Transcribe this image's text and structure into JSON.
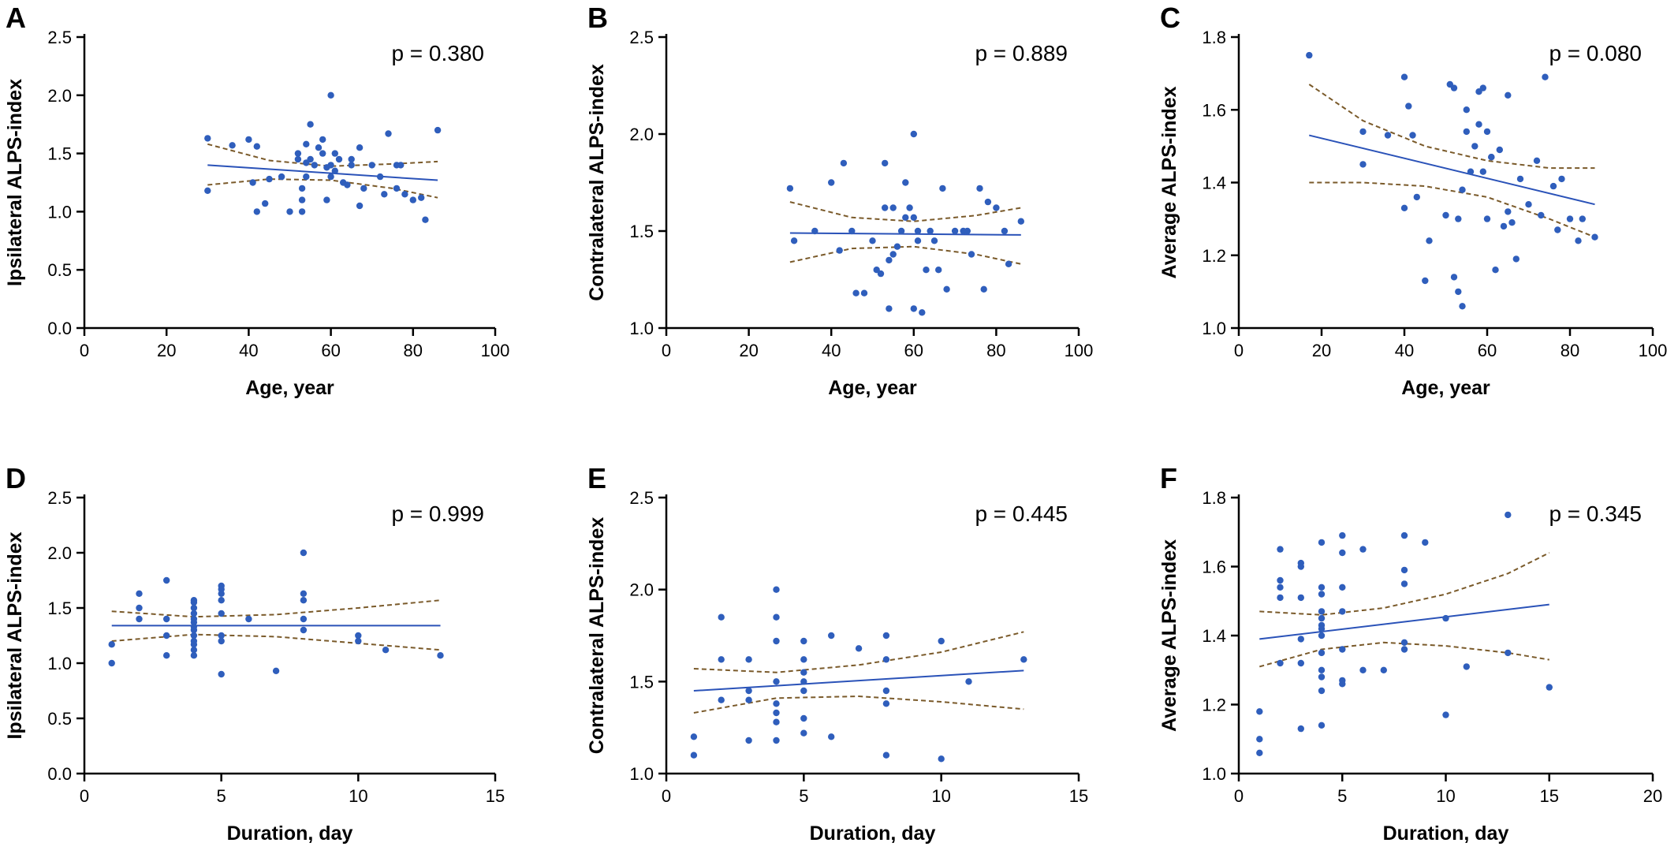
{
  "colors": {
    "point": "#2f5ebc",
    "fit_line": "#2a52b8",
    "ci_band": "#7a5a2a",
    "axis": "#000000"
  },
  "chart_data": [
    {
      "panel": "A",
      "type": "scatter",
      "xlabel": "Age, year",
      "ylabel": "Ipsilateral ALPS-index",
      "xlim": [
        0,
        100
      ],
      "ylim": [
        0,
        2.5
      ],
      "xticks": [
        0,
        20,
        40,
        60,
        80,
        100
      ],
      "xtick_labels": [
        "0",
        "20",
        "40",
        "60",
        "80",
        "100"
      ],
      "yticks": [
        0,
        0.5,
        1.0,
        1.5,
        2.0,
        2.5
      ],
      "ytick_labels": [
        "0.0",
        "0.5",
        "1.0",
        "1.5",
        "2.0",
        "2.5"
      ],
      "annotation": "p = 0.380",
      "regression": {
        "x": [
          30,
          86
        ],
        "y": [
          1.4,
          1.27
        ]
      },
      "ci_lower": {
        "x": [
          30,
          45,
          60,
          75,
          86
        ],
        "y": [
          1.23,
          1.28,
          1.27,
          1.2,
          1.12
        ]
      },
      "ci_upper": {
        "x": [
          30,
          45,
          60,
          75,
          86
        ],
        "y": [
          1.58,
          1.44,
          1.39,
          1.41,
          1.43
        ]
      },
      "x": [
        30,
        30,
        36,
        40,
        41,
        42,
        42,
        44,
        45,
        48,
        50,
        52,
        52,
        53,
        53,
        53,
        54,
        54,
        54,
        55,
        55,
        56,
        57,
        58,
        58,
        59,
        59,
        60,
        60,
        60,
        61,
        61,
        62,
        63,
        64,
        65,
        65,
        67,
        67,
        68,
        70,
        72,
        73,
        74,
        76,
        76,
        77,
        78,
        80,
        82,
        83,
        86
      ],
      "y": [
        1.63,
        1.18,
        1.57,
        1.62,
        1.25,
        1.56,
        1.0,
        1.07,
        1.28,
        1.3,
        1.0,
        1.45,
        1.5,
        1.0,
        1.2,
        1.1,
        1.3,
        1.42,
        1.58,
        1.45,
        1.75,
        1.4,
        1.55,
        1.62,
        1.5,
        1.1,
        1.38,
        1.4,
        1.3,
        2.0,
        1.35,
        1.5,
        1.45,
        1.25,
        1.23,
        1.4,
        1.45,
        1.05,
        1.55,
        1.2,
        1.4,
        1.3,
        1.15,
        1.67,
        1.4,
        1.2,
        1.4,
        1.15,
        1.1,
        1.12,
        0.93,
        1.7
      ]
    },
    {
      "panel": "B",
      "type": "scatter",
      "xlabel": "Age, year",
      "ylabel": "Contralateral ALPS-index",
      "xlim": [
        0,
        100
      ],
      "ylim": [
        1.0,
        2.5
      ],
      "xticks": [
        0,
        20,
        40,
        60,
        80,
        100
      ],
      "xtick_labels": [
        "0",
        "20",
        "40",
        "60",
        "80",
        "100"
      ],
      "yticks": [
        1.0,
        1.5,
        2.0,
        2.5
      ],
      "ytick_labels": [
        "1.0",
        "1.5",
        "2.0",
        "2.5"
      ],
      "annotation": "p = 0.889",
      "regression": {
        "x": [
          30,
          86
        ],
        "y": [
          1.49,
          1.48
        ]
      },
      "ci_lower": {
        "x": [
          30,
          45,
          60,
          75,
          86
        ],
        "y": [
          1.34,
          1.41,
          1.42,
          1.38,
          1.33
        ]
      },
      "ci_upper": {
        "x": [
          30,
          45,
          60,
          75,
          86
        ],
        "y": [
          1.65,
          1.57,
          1.55,
          1.58,
          1.62
        ]
      },
      "x": [
        30,
        31,
        36,
        40,
        42,
        43,
        45,
        46,
        48,
        50,
        51,
        52,
        53,
        53,
        54,
        54,
        55,
        55,
        56,
        57,
        58,
        58,
        59,
        60,
        60,
        60,
        61,
        61,
        62,
        63,
        64,
        65,
        66,
        67,
        68,
        70,
        72,
        73,
        74,
        76,
        77,
        78,
        80,
        82,
        83,
        86
      ],
      "y": [
        1.72,
        1.45,
        1.5,
        1.75,
        1.4,
        1.85,
        1.5,
        1.18,
        1.18,
        1.45,
        1.3,
        1.28,
        1.62,
        1.85,
        1.35,
        1.1,
        1.62,
        1.38,
        1.42,
        1.5,
        1.75,
        1.57,
        1.62,
        2.0,
        1.57,
        1.1,
        1.45,
        1.5,
        1.08,
        1.3,
        1.5,
        1.45,
        1.3,
        1.72,
        1.2,
        1.5,
        1.5,
        1.5,
        1.38,
        1.72,
        1.2,
        1.65,
        1.62,
        1.5,
        1.33,
        1.55
      ]
    },
    {
      "panel": "C",
      "type": "scatter",
      "xlabel": "Age, year",
      "ylabel": "Average ALPS-index",
      "xlim": [
        0,
        100
      ],
      "ylim": [
        1.0,
        1.8
      ],
      "xticks": [
        0,
        20,
        40,
        60,
        80,
        100
      ],
      "xtick_labels": [
        "0",
        "20",
        "40",
        "60",
        "80",
        "100"
      ],
      "yticks": [
        1.0,
        1.2,
        1.4,
        1.6,
        1.8
      ],
      "ytick_labels": [
        "1.0",
        "1.2",
        "1.4",
        "1.6",
        "1.8"
      ],
      "annotation": "p = 0.080",
      "regression": {
        "x": [
          17,
          86
        ],
        "y": [
          1.53,
          1.34
        ]
      },
      "ci_lower": {
        "x": [
          17,
          30,
          45,
          60,
          75,
          86
        ],
        "y": [
          1.4,
          1.4,
          1.39,
          1.36,
          1.3,
          1.25
        ]
      },
      "ci_upper": {
        "x": [
          17,
          30,
          45,
          60,
          75,
          86
        ],
        "y": [
          1.67,
          1.57,
          1.5,
          1.46,
          1.44,
          1.44
        ]
      },
      "x": [
        17,
        30,
        30,
        36,
        40,
        40,
        41,
        42,
        43,
        45,
        46,
        50,
        51,
        52,
        52,
        53,
        53,
        54,
        54,
        55,
        55,
        56,
        57,
        58,
        58,
        59,
        59,
        60,
        60,
        61,
        61,
        62,
        63,
        64,
        65,
        65,
        66,
        67,
        68,
        70,
        72,
        73,
        74,
        76,
        77,
        78,
        80,
        82,
        83,
        86
      ],
      "y": [
        1.75,
        1.54,
        1.45,
        1.53,
        1.69,
        1.33,
        1.61,
        1.53,
        1.36,
        1.13,
        1.24,
        1.31,
        1.67,
        1.14,
        1.66,
        1.1,
        1.3,
        1.06,
        1.38,
        1.54,
        1.6,
        1.43,
        1.5,
        1.65,
        1.56,
        1.43,
        1.66,
        1.3,
        1.54,
        1.47,
        1.47,
        1.16,
        1.49,
        1.28,
        1.32,
        1.64,
        1.29,
        1.19,
        1.41,
        1.34,
        1.46,
        1.31,
        1.69,
        1.39,
        1.27,
        1.41,
        1.3,
        1.24,
        1.3,
        1.25
      ]
    },
    {
      "panel": "D",
      "type": "scatter",
      "xlabel": "Duration, day",
      "ylabel": "Ipsilateral ALPS-index",
      "xlim": [
        0,
        15
      ],
      "ylim": [
        0,
        2.5
      ],
      "xticks": [
        0,
        5,
        10,
        15
      ],
      "xtick_labels": [
        "0",
        "5",
        "10",
        "15"
      ],
      "yticks": [
        0,
        0.5,
        1.0,
        1.5,
        2.0,
        2.5
      ],
      "ytick_labels": [
        "0.0",
        "0.5",
        "1.0",
        "1.5",
        "2.0",
        "2.5"
      ],
      "annotation": "p = 0.999",
      "regression": {
        "x": [
          1,
          13
        ],
        "y": [
          1.34,
          1.34
        ]
      },
      "ci_lower": {
        "x": [
          1,
          4,
          7,
          10,
          13
        ],
        "y": [
          1.2,
          1.26,
          1.24,
          1.18,
          1.12
        ]
      },
      "ci_upper": {
        "x": [
          1,
          4,
          7,
          10,
          13
        ],
        "y": [
          1.47,
          1.42,
          1.44,
          1.5,
          1.57
        ]
      },
      "x": [
        1,
        1,
        2,
        2,
        2,
        3,
        3,
        3,
        3,
        4,
        4,
        4,
        4,
        4,
        4,
        4,
        4,
        4,
        4,
        4,
        4,
        4,
        5,
        5,
        5,
        5,
        5,
        5,
        5,
        5,
        6,
        7,
        8,
        8,
        8,
        8,
        8,
        10,
        10,
        11,
        13
      ],
      "y": [
        1.17,
        1.0,
        1.63,
        1.5,
        1.4,
        1.75,
        1.4,
        1.25,
        1.07,
        1.57,
        1.55,
        1.5,
        1.45,
        1.4,
        1.37,
        1.33,
        1.3,
        1.25,
        1.2,
        1.17,
        1.12,
        1.07,
        1.7,
        1.67,
        1.63,
        1.57,
        1.45,
        1.25,
        1.2,
        0.9,
        1.4,
        0.93,
        2.0,
        1.63,
        1.57,
        1.4,
        1.3,
        1.25,
        1.2,
        1.12,
        1.07
      ]
    },
    {
      "panel": "E",
      "type": "scatter",
      "xlabel": "Duration, day",
      "ylabel": "Contralateral ALPS-index",
      "xlim": [
        0,
        15
      ],
      "ylim": [
        1.0,
        2.5
      ],
      "xticks": [
        0,
        5,
        10,
        15
      ],
      "xtick_labels": [
        "0",
        "5",
        "10",
        "15"
      ],
      "yticks": [
        1.0,
        1.5,
        2.0,
        2.5
      ],
      "ytick_labels": [
        "1.0",
        "1.5",
        "2.0",
        "2.5"
      ],
      "annotation": "p = 0.445",
      "regression": {
        "x": [
          1,
          13
        ],
        "y": [
          1.45,
          1.56
        ]
      },
      "ci_lower": {
        "x": [
          1,
          4,
          7,
          10,
          13
        ],
        "y": [
          1.33,
          1.41,
          1.42,
          1.39,
          1.35
        ]
      },
      "ci_upper": {
        "x": [
          1,
          4,
          7,
          10,
          13
        ],
        "y": [
          1.57,
          1.55,
          1.59,
          1.66,
          1.77
        ]
      },
      "x": [
        1,
        1,
        2,
        2,
        2,
        3,
        3,
        3,
        3,
        4,
        4,
        4,
        4,
        4,
        4,
        4,
        4,
        5,
        5,
        5,
        5,
        5,
        5,
        5,
        6,
        6,
        7,
        8,
        8,
        8,
        8,
        8,
        10,
        10,
        11,
        13
      ],
      "y": [
        1.2,
        1.1,
        1.85,
        1.62,
        1.4,
        1.62,
        1.45,
        1.4,
        1.18,
        2.0,
        1.85,
        1.72,
        1.5,
        1.38,
        1.33,
        1.28,
        1.18,
        1.72,
        1.62,
        1.55,
        1.5,
        1.45,
        1.3,
        1.22,
        1.75,
        1.2,
        1.68,
        1.75,
        1.62,
        1.45,
        1.38,
        1.1,
        1.72,
        1.08,
        1.5,
        1.62
      ]
    },
    {
      "panel": "F",
      "type": "scatter",
      "xlabel": "Duration, day",
      "ylabel": "Average ALPS-index",
      "xlim": [
        0,
        20
      ],
      "ylim": [
        1.0,
        1.8
      ],
      "xticks": [
        0,
        5,
        10,
        15,
        20
      ],
      "xtick_labels": [
        "0",
        "5",
        "10",
        "15",
        "20"
      ],
      "yticks": [
        1.0,
        1.2,
        1.4,
        1.6,
        1.8
      ],
      "ytick_labels": [
        "1.0",
        "1.2",
        "1.4",
        "1.6",
        "1.8"
      ],
      "annotation": "p = 0.345",
      "regression": {
        "x": [
          1,
          15
        ],
        "y": [
          1.39,
          1.49
        ]
      },
      "ci_lower": {
        "x": [
          1,
          4,
          7,
          10,
          13,
          15
        ],
        "y": [
          1.31,
          1.36,
          1.38,
          1.37,
          1.35,
          1.33
        ]
      },
      "ci_upper": {
        "x": [
          1,
          4,
          7,
          10,
          13,
          15
        ],
        "y": [
          1.47,
          1.46,
          1.48,
          1.52,
          1.58,
          1.64
        ]
      },
      "x": [
        1,
        1,
        1,
        2,
        2,
        2,
        2,
        2,
        3,
        3,
        3,
        3,
        3,
        3,
        4,
        4,
        4,
        4,
        4,
        4,
        4,
        4,
        4,
        4,
        4,
        4,
        4,
        5,
        5,
        5,
        5,
        5,
        5,
        5,
        6,
        6,
        7,
        8,
        8,
        8,
        8,
        8,
        9,
        10,
        10,
        11,
        13,
        13,
        15
      ],
      "y": [
        1.18,
        1.1,
        1.06,
        1.65,
        1.56,
        1.54,
        1.51,
        1.32,
        1.61,
        1.6,
        1.51,
        1.39,
        1.32,
        1.13,
        1.67,
        1.54,
        1.52,
        1.47,
        1.45,
        1.43,
        1.42,
        1.4,
        1.35,
        1.3,
        1.28,
        1.24,
        1.14,
        1.69,
        1.64,
        1.54,
        1.47,
        1.36,
        1.27,
        1.26,
        1.65,
        1.3,
        1.3,
        1.69,
        1.59,
        1.55,
        1.38,
        1.36,
        1.67,
        1.45,
        1.17,
        1.31,
        1.75,
        1.35,
        1.25
      ]
    }
  ]
}
